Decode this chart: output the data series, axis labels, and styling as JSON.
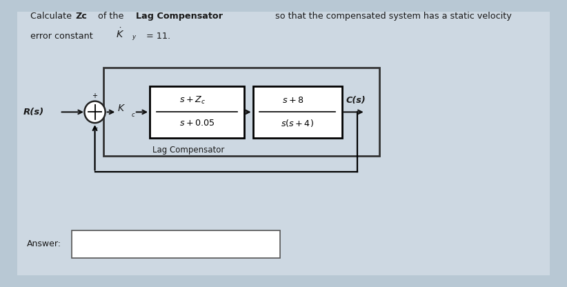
{
  "bg_outer": "#b8c8d4",
  "bg_inner": "#cdd8e2",
  "text_color": "#1a1a1a",
  "box_color": "#ffffff",
  "box_edge": "#222222",
  "arrow_color": "#111111",
  "Rs_label": "R(s)",
  "Cs_label": "C(s)",
  "lag_box_label": "Lag Compensator",
  "answer_label": "Answer:",
  "figsize": [
    8.22,
    4.16
  ],
  "dpi": 100
}
